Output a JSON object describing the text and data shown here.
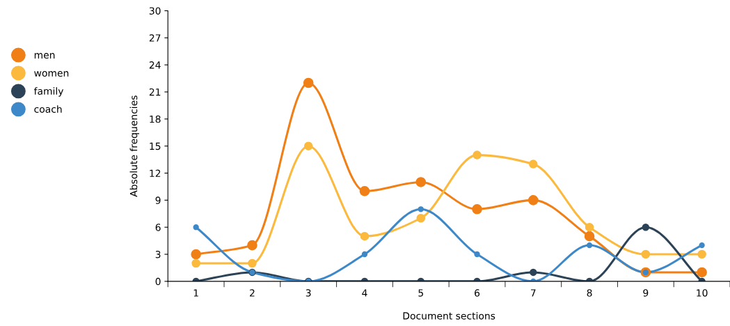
{
  "chart_data": {
    "type": "line",
    "xlabel": "Document sections",
    "ylabel": "Absolute frequencies",
    "categories": [
      "1",
      "2",
      "3",
      "4",
      "5",
      "6",
      "7",
      "8",
      "9",
      "10"
    ],
    "series": [
      {
        "name": "men",
        "color": "#f07f16",
        "values": [
          3,
          4,
          22,
          10,
          11,
          8,
          9,
          5,
          1,
          1
        ]
      },
      {
        "name": "women",
        "color": "#fbb93d",
        "values": [
          2,
          2,
          15,
          5,
          7,
          14,
          13,
          6,
          3,
          3
        ]
      },
      {
        "name": "family",
        "color": "#2c4357",
        "values": [
          0,
          1,
          0,
          0,
          0,
          0,
          1,
          0,
          6,
          0
        ]
      },
      {
        "name": "coach",
        "color": "#3d88c8",
        "values": [
          6,
          1,
          0,
          3,
          8,
          3,
          0,
          4,
          1,
          4
        ]
      }
    ],
    "ylim": [
      0,
      30
    ],
    "yticks": [
      0,
      3,
      6,
      9,
      12,
      15,
      18,
      21,
      24,
      27,
      30
    ],
    "grid": false,
    "legend": "left",
    "marker": "circle",
    "line_style": "solid"
  }
}
